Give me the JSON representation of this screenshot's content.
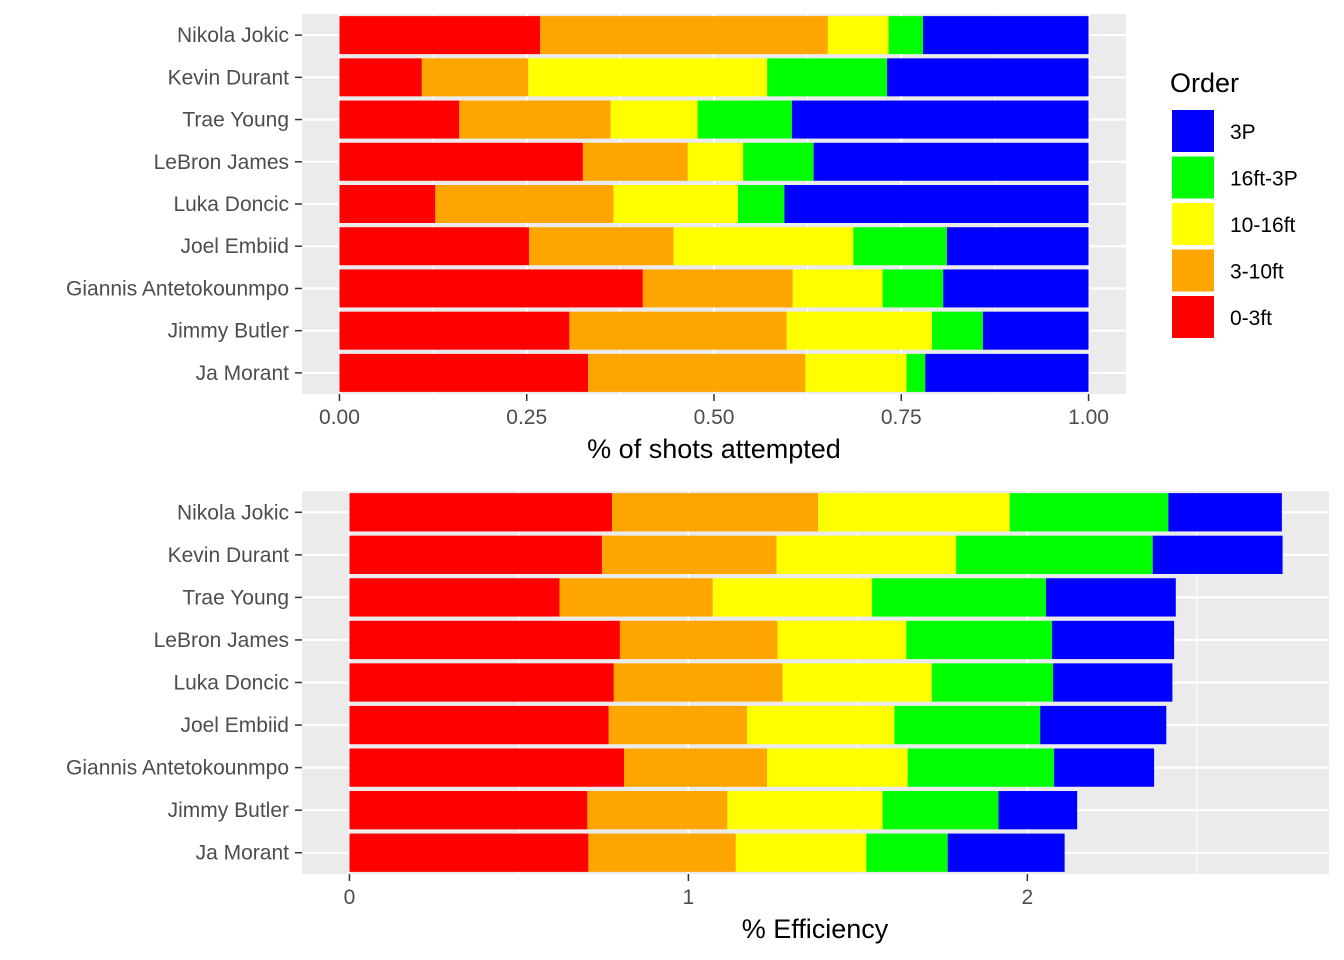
{
  "legend": {
    "title": "Order",
    "entries": [
      {
        "label": "3P",
        "color": "#0000ff"
      },
      {
        "label": "16ft-3P",
        "color": "#00ff00"
      },
      {
        "label": "10-16ft",
        "color": "#ffff00"
      },
      {
        "label": "3-10ft",
        "color": "#ffa500"
      },
      {
        "label": "0-3ft",
        "color": "#ff0000"
      }
    ]
  },
  "chart_data": [
    {
      "type": "bar",
      "orientation": "horizontal",
      "stacked": true,
      "xlabel": "% of shots attempted",
      "ylabel": "",
      "xlim": [
        -0.05,
        1.05
      ],
      "xticks": [
        0,
        0.25,
        0.5,
        0.75,
        1
      ],
      "xtick_labels": [
        "0.00",
        "0.25",
        "0.50",
        "0.75",
        "1.00"
      ],
      "categories": [
        "Nikola Jokic",
        "Kevin Durant",
        "Trae Young",
        "LeBron James",
        "Luka Doncic",
        "Joel Embiid",
        "Giannis Antetokounmpo",
        "Jimmy Butler",
        "Ja Morant"
      ],
      "series": [
        {
          "name": "0-3ft",
          "color": "#ff0000",
          "values": [
            0.268,
            0.11,
            0.16,
            0.325,
            0.128,
            0.253,
            0.405,
            0.307,
            0.332
          ]
        },
        {
          "name": "3-10ft",
          "color": "#ffa500",
          "values": [
            0.384,
            0.142,
            0.202,
            0.14,
            0.238,
            0.193,
            0.2,
            0.29,
            0.29
          ]
        },
        {
          "name": "10-16ft",
          "color": "#ffff00",
          "values": [
            0.081,
            0.319,
            0.116,
            0.074,
            0.166,
            0.24,
            0.12,
            0.194,
            0.135
          ]
        },
        {
          "name": "16ft-3P",
          "color": "#00ff00",
          "values": [
            0.046,
            0.16,
            0.126,
            0.094,
            0.062,
            0.125,
            0.081,
            0.068,
            0.025
          ]
        },
        {
          "name": "3P",
          "color": "#0000ff",
          "values": [
            0.221,
            0.269,
            0.396,
            0.367,
            0.406,
            0.189,
            0.194,
            0.141,
            0.218
          ]
        }
      ]
    },
    {
      "type": "bar",
      "orientation": "horizontal",
      "stacked": true,
      "xlabel": "% Efficiency",
      "ylabel": "",
      "xlim": [
        -0.14,
        2.89
      ],
      "xticks": [
        0,
        1,
        2
      ],
      "xtick_labels": [
        "0",
        "1",
        "2"
      ],
      "categories": [
        "Nikola Jokic",
        "Kevin Durant",
        "Trae Young",
        "LeBron James",
        "Luka Doncic",
        "Joel Embiid",
        "Giannis Antetokounmpo",
        "Jimmy Butler",
        "Ja Morant"
      ],
      "series": [
        {
          "name": "0-3ft",
          "color": "#ff0000",
          "values": [
            0.775,
            0.745,
            0.62,
            0.798,
            0.78,
            0.765,
            0.81,
            0.702,
            0.705
          ]
        },
        {
          "name": "3-10ft",
          "color": "#ffa500",
          "values": [
            0.608,
            0.515,
            0.452,
            0.465,
            0.498,
            0.408,
            0.422,
            0.413,
            0.435
          ]
        },
        {
          "name": "10-16ft",
          "color": "#ffff00",
          "values": [
            0.565,
            0.53,
            0.47,
            0.38,
            0.44,
            0.435,
            0.415,
            0.458,
            0.385
          ]
        },
        {
          "name": "16ft-3P",
          "color": "#00ff00",
          "values": [
            0.468,
            0.58,
            0.513,
            0.43,
            0.358,
            0.43,
            0.432,
            0.342,
            0.24
          ]
        },
        {
          "name": "3P",
          "color": "#0000ff",
          "values": [
            0.335,
            0.383,
            0.383,
            0.36,
            0.352,
            0.372,
            0.295,
            0.232,
            0.345
          ]
        }
      ]
    }
  ]
}
